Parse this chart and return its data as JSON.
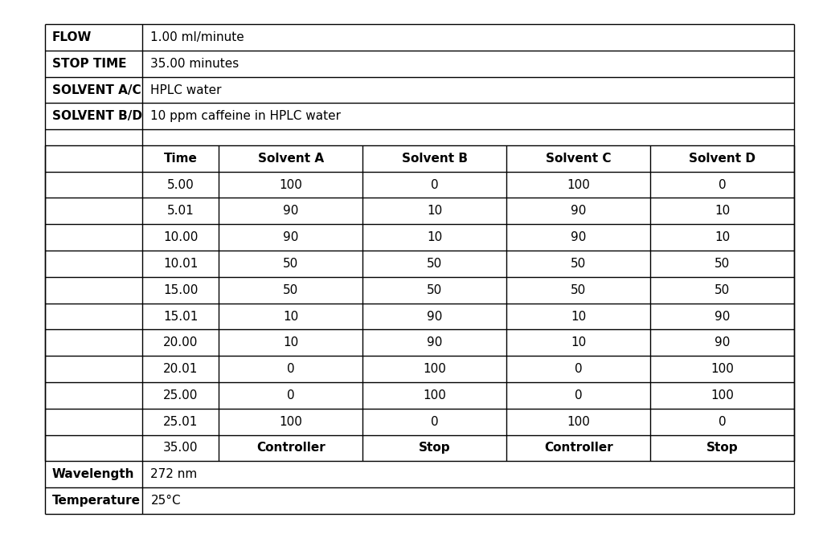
{
  "background_color": "#ffffff",
  "header_rows": [
    {
      "label": "FLOW",
      "value": "1.00 ml/minute"
    },
    {
      "label": "STOP TIME",
      "value": "35.00 minutes"
    },
    {
      "label": "SOLVENT A/C",
      "value": "HPLC water"
    },
    {
      "label": "SOLVENT B/D",
      "value": "10 ppm caffeine in HPLC water"
    }
  ],
  "footer_rows": [
    {
      "label": "Wavelength",
      "value": "272 nm"
    },
    {
      "label": "Temperature",
      "value": "25°C"
    }
  ],
  "table_headers": [
    "Time",
    "Solvent A",
    "Solvent B",
    "Solvent C",
    "Solvent D"
  ],
  "table_rows": [
    [
      "5.00",
      "100",
      "0",
      "100",
      "0"
    ],
    [
      "5.01",
      "90",
      "10",
      "90",
      "10"
    ],
    [
      "10.00",
      "90",
      "10",
      "90",
      "10"
    ],
    [
      "10.01",
      "50",
      "50",
      "50",
      "50"
    ],
    [
      "15.00",
      "50",
      "50",
      "50",
      "50"
    ],
    [
      "15.01",
      "10",
      "90",
      "10",
      "90"
    ],
    [
      "20.00",
      "10",
      "90",
      "10",
      "90"
    ],
    [
      "20.01",
      "0",
      "100",
      "0",
      "100"
    ],
    [
      "25.00",
      "0",
      "100",
      "0",
      "100"
    ],
    [
      "25.01",
      "100",
      "0",
      "100",
      "0"
    ],
    [
      "35.00",
      "Controller",
      "Stop",
      "Controller",
      "Stop"
    ]
  ],
  "line_color": "#000000",
  "font_size": 11,
  "temp_value": "25°C"
}
